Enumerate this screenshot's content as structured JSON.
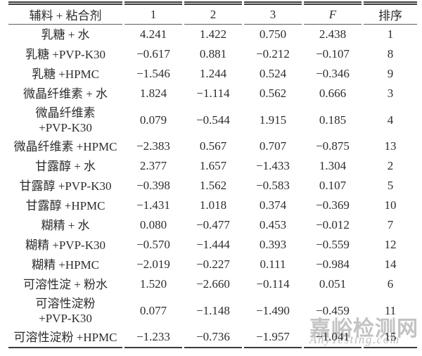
{
  "colors": {
    "text": "#2d2d2d",
    "rule": "#3b3b3b",
    "watermark": "#c3c3c3"
  },
  "table": {
    "headers": [
      "辅料 + 粘合剂",
      "1",
      "2",
      "3",
      "F",
      "排序"
    ],
    "rows": [
      {
        "label": "乳糖 + 水",
        "values": [
          "4.241",
          "1.422",
          "0.750",
          "2.438",
          "1"
        ]
      },
      {
        "label": "乳糖 +PVP-K30",
        "values": [
          "−0.617",
          "0.881",
          "−0.212",
          "−0.107",
          "8"
        ]
      },
      {
        "label": "乳糖 +HPMC",
        "values": [
          "−1.546",
          "1.244",
          "0.524",
          "−0.346",
          "9"
        ]
      },
      {
        "label": "微晶纤维素 + 水",
        "values": [
          "1.824",
          "−1.114",
          "0.562",
          "0.666",
          "3"
        ]
      },
      {
        "label": "微晶纤维素\n+PVP-K30",
        "values": [
          "0.079",
          "−0.544",
          "1.915",
          "0.185",
          "4"
        ]
      },
      {
        "label": "微晶纤维素 +HPMC",
        "values": [
          "−2.383",
          "0.567",
          "0.707",
          "−0.875",
          "13"
        ]
      },
      {
        "label": "甘露醇 + 水",
        "values": [
          "2.377",
          "1.657",
          "−1.433",
          "1.304",
          "2"
        ]
      },
      {
        "label": "甘露醇 +PVP-K30",
        "values": [
          "−0.398",
          "1.562",
          "−0.583",
          "0.107",
          "5"
        ]
      },
      {
        "label": "甘露醇 +HPMC",
        "values": [
          "−1.431",
          "1.018",
          "0.374",
          "−0.369",
          "10"
        ]
      },
      {
        "label": "糊精 + 水",
        "values": [
          "0.080",
          "−0.477",
          "0.453",
          "−0.012",
          "7"
        ]
      },
      {
        "label": "糊精 +PVP-K30",
        "values": [
          "−0.570",
          "−1.444",
          "0.393",
          "−0.559",
          "12"
        ]
      },
      {
        "label": "糊精 +HPMC",
        "values": [
          "−2.019",
          "−0.227",
          "0.111",
          "−0.984",
          "14"
        ]
      },
      {
        "label": "可溶性淀 + 粉水",
        "values": [
          "1.520",
          "−2.660",
          "−0.114",
          "0.051",
          "6"
        ]
      },
      {
        "label": "可溶性淀粉\n+PVP-K30",
        "values": [
          "0.077",
          "−1.148",
          "−1.490",
          "−0.459",
          "11"
        ]
      },
      {
        "label": "可溶性淀粉 +HPMC",
        "values": [
          "−1.233",
          "−0.736",
          "−1.957",
          "−1.041",
          "15"
        ]
      }
    ]
  },
  "watermark": {
    "cn": "嘉峪检测网",
    "en": "AnyTesting.com"
  }
}
